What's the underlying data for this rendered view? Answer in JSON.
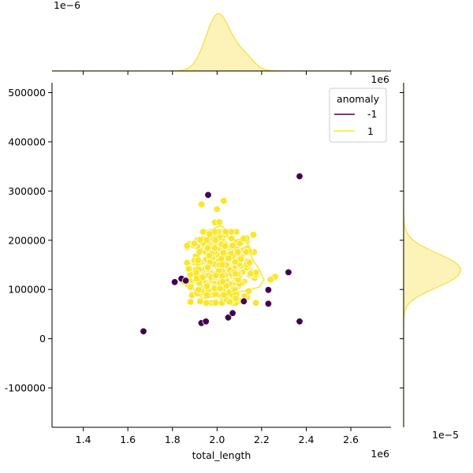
{
  "chart_data": {
    "type": "scatter",
    "subtype": "jointplot-with-kde",
    "xlabel": "total_length",
    "ylabel": "",
    "x_offset_label": "1e6",
    "y_offset_label": "",
    "x_ticks": [
      "1.4",
      "1.6",
      "1.8",
      "2.0",
      "2.2",
      "2.4",
      "2.6"
    ],
    "y_ticks": [
      "-100000",
      "0",
      "100000",
      "200000",
      "300000",
      "400000",
      "500000"
    ],
    "xlim": [
      1260000.0,
      2780000.0
    ],
    "ylim": [
      -180000,
      520000
    ],
    "top_marginal": {
      "offset_label": "1e−6",
      "color": "#f5e132"
    },
    "right_marginal": {
      "offset_label": "1e−5",
      "color": "#f5e132"
    },
    "legend": {
      "title": "anomaly",
      "placement": "top-right",
      "entries": [
        {
          "label": "-1",
          "color": "#440154"
        },
        {
          "label": "1",
          "color": "#fde725"
        }
      ]
    },
    "series": [
      {
        "name": "-1",
        "color": "#440154",
        "points": [
          [
            1670000.0,
            15000
          ],
          [
            1810000.0,
            115000
          ],
          [
            1840000.0,
            122000
          ],
          [
            1860000.0,
            118000
          ],
          [
            1930000.0,
            32000
          ],
          [
            1950000.0,
            35000
          ],
          [
            1960000.0,
            292000
          ],
          [
            2050000.0,
            43000
          ],
          [
            2070000.0,
            52000
          ],
          [
            2120000.0,
            76000
          ],
          [
            2230000.0,
            99000
          ],
          [
            2230000.0,
            71000
          ],
          [
            2320000.0,
            135000
          ],
          [
            2370000.0,
            330000
          ],
          [
            2370000.0,
            35000
          ]
        ]
      },
      {
        "name": "1",
        "color": "#fde725",
        "center": [
          2020000.0,
          145000
        ],
        "spread": [
          70000,
          38000
        ],
        "count": 420,
        "extra_points": [
          [
            1930000.0,
            273000
          ],
          [
            2000000.0,
            263000
          ],
          [
            2030000.0,
            280000
          ],
          [
            1990000.0,
            236000
          ],
          [
            2010000.0,
            237000
          ],
          [
            2260000.0,
            126000
          ],
          [
            1850000.0,
            116000
          ],
          [
            1880000.0,
            105000
          ],
          [
            2240000.0,
            120000
          ]
        ]
      }
    ],
    "kde_contour": [
      [
        1920000.0,
        170000
      ],
      [
        1940000.0,
        190000
      ],
      [
        1970000.0,
        212000
      ],
      [
        1990000.0,
        225000
      ],
      [
        2020000.0,
        230000
      ],
      [
        2040000.0,
        218000
      ],
      [
        2050000.0,
        205000
      ],
      [
        2080000.0,
        200000
      ],
      [
        2120000.0,
        205000
      ],
      [
        2140000.0,
        190000
      ],
      [
        2160000.0,
        160000
      ],
      [
        2190000.0,
        140000
      ],
      [
        2210000.0,
        120000
      ],
      [
        2190000.0,
        105000
      ],
      [
        2150000.0,
        100000
      ],
      [
        2100000.0,
        95000
      ],
      [
        2060000.0,
        90000
      ],
      [
        2020000.0,
        88000
      ],
      [
        1980000.0,
        85000
      ],
      [
        1940000.0,
        82000
      ],
      [
        1910000.0,
        90000
      ],
      [
        1890000.0,
        105000
      ],
      [
        1900000.0,
        125000
      ],
      [
        1910000.0,
        150000
      ]
    ]
  }
}
